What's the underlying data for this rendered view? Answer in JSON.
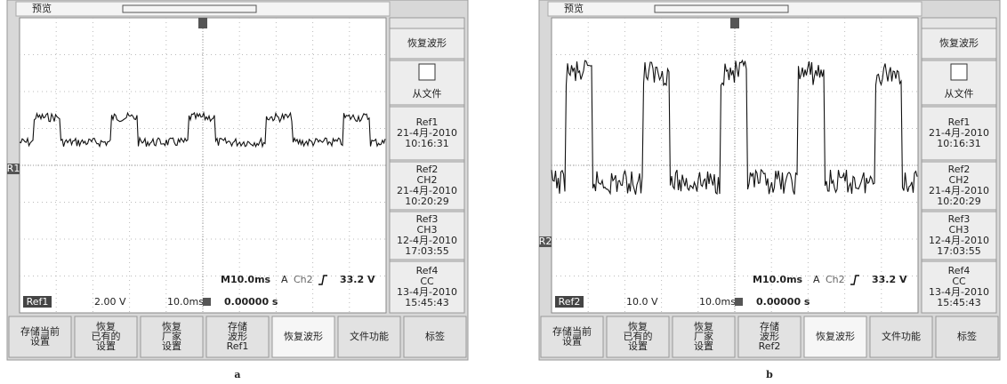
{
  "panels": [
    {
      "caption": "a",
      "preview": "预览",
      "ref_marker": "R1",
      "menu_title": "恢复波形",
      "from_file": "从文件",
      "refs": [
        [
          "Ref1",
          "21-4月-2010",
          "10:16:31"
        ],
        [
          "Ref2",
          "CH2",
          "21-4月-2010",
          "10:20:29"
        ],
        [
          "Ref3",
          "CH3",
          "12-4月-2010",
          "17:03:55"
        ],
        [
          "Ref4",
          "CC",
          "13-4月-2010",
          "15:45:43"
        ]
      ],
      "status": {
        "timebase": "M10.0ms",
        "trigger_mode": "A",
        "source": "Ch2",
        "level": "33.2 V"
      },
      "readout": {
        "ref": "Ref1",
        "volts": "2.00 V",
        "time": "10.0ms",
        "offset": "0.00000 s"
      },
      "buttons": [
        [
          "存储当前",
          "设置"
        ],
        [
          "恢复",
          "已有的",
          "设置"
        ],
        [
          "恢复",
          "厂家",
          "设置"
        ],
        [
          "存储",
          "波形",
          "Ref1"
        ],
        [
          "恢复波形"
        ],
        [
          "文件功能"
        ],
        [
          "标签"
        ]
      ]
    },
    {
      "caption": "b",
      "preview": "预览",
      "ref_marker": "R2",
      "menu_title": "恢复波形",
      "from_file": "从文件",
      "refs": [
        [
          "Ref1",
          "21-4月-2010",
          "10:16:31"
        ],
        [
          "Ref2",
          "CH2",
          "21-4月-2010",
          "10:20:29"
        ],
        [
          "Ref3",
          "CH3",
          "12-4月-2010",
          "17:03:55"
        ],
        [
          "Ref4",
          "CC",
          "13-4月-2010",
          "15:45:43"
        ]
      ],
      "status": {
        "timebase": "M10.0ms",
        "trigger_mode": "A",
        "source": "Ch2",
        "level": "33.2 V"
      },
      "readout": {
        "ref": "Ref2",
        "volts": "10.0 V",
        "time": "10.0ms",
        "offset": "0.00000 s"
      },
      "buttons": [
        [
          "存储当前",
          "设置"
        ],
        [
          "恢复",
          "已有的",
          "设置"
        ],
        [
          "恢复",
          "厂家",
          "设置"
        ],
        [
          "存储",
          "波形",
          "Ref2"
        ],
        [
          "恢复波形"
        ],
        [
          "文件功能"
        ],
        [
          "标签"
        ]
      ]
    }
  ]
}
